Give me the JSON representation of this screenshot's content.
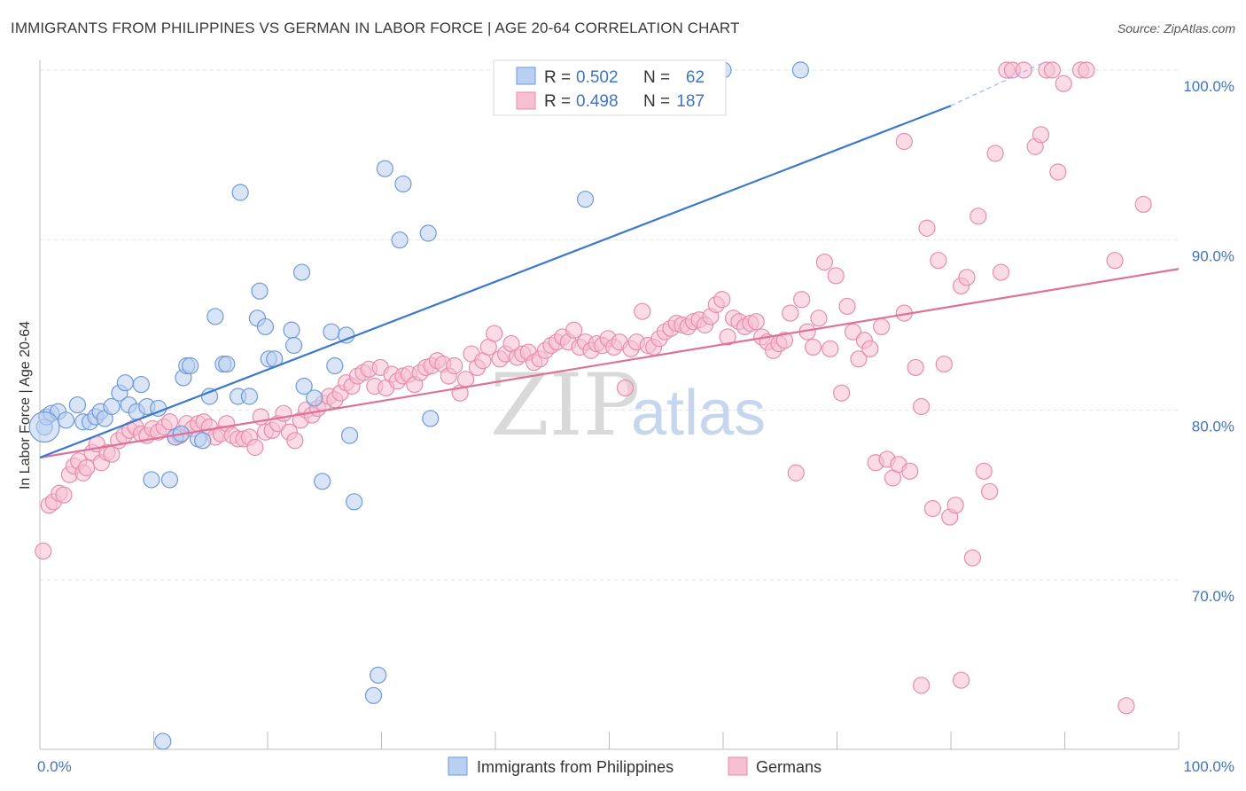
{
  "title": "IMMIGRANTS FROM PHILIPPINES VS GERMAN IN LABOR FORCE | AGE 20-64 CORRELATION CHART",
  "source": "Source: ZipAtlas.com",
  "watermark": {
    "zip": "ZIP",
    "atlas": "atlas"
  },
  "colors": {
    "blue": "#4a80d0",
    "blue_fill": "#b9d0f0",
    "pink": "#e07098",
    "pink_fill": "#f7c0d2",
    "tick_text": "#3f74c4"
  },
  "legend": {
    "rows": [
      {
        "r_label": "R =",
        "r_value": "0.502",
        "n_label": "N =",
        "n_value": "62"
      },
      {
        "r_label": "R =",
        "r_value": "0.498",
        "n_label": "N =",
        "n_value": "187"
      }
    ]
  },
  "bottom_legend": [
    "Immigrants from Philippines",
    "Germans"
  ],
  "chart_data": {
    "type": "scatter",
    "ylabel": "In Labor Force | Age 20-64",
    "xlim": [
      0,
      100
    ],
    "ylim": [
      60.5,
      101
    ],
    "x_tick_labels": [
      "0.0%",
      "100.0%"
    ],
    "y_ticks": [
      70,
      80,
      90,
      100
    ],
    "y_tick_labels": [
      "70.0%",
      "80.0%",
      "90.0%",
      "100.0%"
    ],
    "grid": true,
    "series": [
      {
        "name": "Immigrants from Philippines",
        "color": "#4a80d0",
        "trend": {
          "x": [
            0,
            80
          ],
          "y": [
            77.2,
            97.9
          ],
          "dashed_to": [
            100,
            103.0
          ]
        },
        "points": [
          [
            0.4,
            79.0
          ],
          [
            0.6,
            79.6
          ],
          [
            1.0,
            79.8
          ],
          [
            1.6,
            79.9
          ],
          [
            2.3,
            79.4
          ],
          [
            3.3,
            80.3
          ],
          [
            3.8,
            79.3
          ],
          [
            4.4,
            79.3
          ],
          [
            4.9,
            79.6
          ],
          [
            5.3,
            79.9
          ],
          [
            5.7,
            79.5
          ],
          [
            6.3,
            80.2
          ],
          [
            7.0,
            81.0
          ],
          [
            7.5,
            81.6
          ],
          [
            7.8,
            80.3
          ],
          [
            8.5,
            79.9
          ],
          [
            8.9,
            81.5
          ],
          [
            9.4,
            80.2
          ],
          [
            10.4,
            80.1
          ],
          [
            9.8,
            75.9
          ],
          [
            11.4,
            75.9
          ],
          [
            11.9,
            78.4
          ],
          [
            12.4,
            78.6
          ],
          [
            12.6,
            81.9
          ],
          [
            12.9,
            82.6
          ],
          [
            13.2,
            82.6
          ],
          [
            13.9,
            78.3
          ],
          [
            14.3,
            78.2
          ],
          [
            14.9,
            80.8
          ],
          [
            15.4,
            85.5
          ],
          [
            16.1,
            82.7
          ],
          [
            16.4,
            82.7
          ],
          [
            17.4,
            80.8
          ],
          [
            17.6,
            92.8
          ],
          [
            18.4,
            80.8
          ],
          [
            19.1,
            85.4
          ],
          [
            19.3,
            87.0
          ],
          [
            19.8,
            84.9
          ],
          [
            20.1,
            83.0
          ],
          [
            20.6,
            83.0
          ],
          [
            22.1,
            84.7
          ],
          [
            22.3,
            83.8
          ],
          [
            23.0,
            88.1
          ],
          [
            23.2,
            81.4
          ],
          [
            24.1,
            80.7
          ],
          [
            24.8,
            75.8
          ],
          [
            25.6,
            84.6
          ],
          [
            25.9,
            82.6
          ],
          [
            26.9,
            84.4
          ],
          [
            27.2,
            78.5
          ],
          [
            27.6,
            74.6
          ],
          [
            29.3,
            63.2
          ],
          [
            29.7,
            64.4
          ],
          [
            30.3,
            94.2
          ],
          [
            31.6,
            90.0
          ],
          [
            31.9,
            93.3
          ],
          [
            34.1,
            90.4
          ],
          [
            34.3,
            79.5
          ],
          [
            10.8,
            60.5
          ],
          [
            47.9,
            92.4
          ],
          [
            60.0,
            100.0
          ],
          [
            66.8,
            100.0
          ]
        ]
      },
      {
        "name": "Germans",
        "color": "#e07098",
        "trend": {
          "x": [
            0,
            100
          ],
          "y": [
            77.2,
            88.3
          ]
        },
        "points": [
          [
            0.3,
            71.7
          ],
          [
            0.8,
            74.4
          ],
          [
            1.2,
            74.6
          ],
          [
            1.7,
            75.1
          ],
          [
            2.1,
            75.0
          ],
          [
            2.6,
            76.2
          ],
          [
            3.0,
            76.7
          ],
          [
            3.4,
            77.0
          ],
          [
            3.8,
            76.3
          ],
          [
            4.1,
            76.6
          ],
          [
            4.6,
            77.5
          ],
          [
            5.0,
            78.0
          ],
          [
            5.4,
            76.9
          ],
          [
            5.9,
            77.5
          ],
          [
            6.3,
            77.4
          ],
          [
            6.9,
            78.2
          ],
          [
            7.4,
            78.5
          ],
          [
            7.9,
            78.8
          ],
          [
            8.4,
            79.0
          ],
          [
            8.9,
            78.6
          ],
          [
            9.4,
            78.5
          ],
          [
            9.9,
            78.9
          ],
          [
            10.4,
            78.7
          ],
          [
            10.9,
            79.0
          ],
          [
            11.4,
            79.3
          ],
          [
            11.9,
            78.4
          ],
          [
            12.3,
            78.5
          ],
          [
            12.9,
            79.2
          ],
          [
            13.4,
            78.9
          ],
          [
            13.9,
            79.2
          ],
          [
            14.4,
            79.3
          ],
          [
            14.9,
            79.0
          ],
          [
            15.4,
            78.4
          ],
          [
            15.9,
            78.6
          ],
          [
            16.4,
            79.2
          ],
          [
            16.9,
            78.5
          ],
          [
            17.4,
            78.3
          ],
          [
            17.9,
            78.3
          ],
          [
            18.4,
            78.4
          ],
          [
            18.9,
            77.8
          ],
          [
            19.4,
            79.6
          ],
          [
            19.8,
            78.7
          ],
          [
            20.4,
            78.8
          ],
          [
            20.9,
            79.2
          ],
          [
            21.4,
            79.8
          ],
          [
            21.9,
            78.7
          ],
          [
            22.4,
            78.2
          ],
          [
            22.9,
            79.4
          ],
          [
            23.4,
            80.0
          ],
          [
            23.9,
            79.7
          ],
          [
            24.4,
            80.1
          ],
          [
            24.9,
            80.4
          ],
          [
            25.4,
            80.8
          ],
          [
            25.9,
            80.6
          ],
          [
            26.4,
            81.0
          ],
          [
            26.9,
            81.6
          ],
          [
            27.4,
            81.4
          ],
          [
            27.9,
            82.0
          ],
          [
            28.4,
            82.2
          ],
          [
            28.9,
            82.4
          ],
          [
            29.4,
            81.4
          ],
          [
            29.9,
            82.5
          ],
          [
            30.4,
            81.3
          ],
          [
            30.9,
            82.1
          ],
          [
            31.4,
            81.7
          ],
          [
            31.9,
            82.0
          ],
          [
            32.4,
            82.1
          ],
          [
            32.9,
            81.5
          ],
          [
            33.4,
            82.2
          ],
          [
            33.9,
            82.5
          ],
          [
            34.4,
            82.6
          ],
          [
            34.9,
            82.9
          ],
          [
            35.4,
            82.7
          ],
          [
            35.9,
            82.0
          ],
          [
            36.4,
            82.6
          ],
          [
            36.9,
            81.0
          ],
          [
            37.4,
            81.8
          ],
          [
            37.9,
            83.3
          ],
          [
            38.4,
            82.5
          ],
          [
            38.9,
            82.9
          ],
          [
            39.4,
            83.7
          ],
          [
            39.9,
            84.5
          ],
          [
            40.4,
            83.0
          ],
          [
            40.9,
            83.3
          ],
          [
            41.4,
            83.9
          ],
          [
            41.9,
            83.1
          ],
          [
            42.4,
            83.3
          ],
          [
            42.9,
            83.4
          ],
          [
            43.4,
            82.8
          ],
          [
            43.9,
            83.0
          ],
          [
            44.4,
            83.5
          ],
          [
            44.9,
            83.8
          ],
          [
            45.4,
            84.0
          ],
          [
            45.9,
            84.3
          ],
          [
            46.4,
            84.0
          ],
          [
            46.9,
            84.7
          ],
          [
            47.4,
            83.7
          ],
          [
            47.9,
            84.0
          ],
          [
            48.4,
            83.5
          ],
          [
            48.9,
            83.9
          ],
          [
            49.4,
            83.8
          ],
          [
            49.9,
            84.2
          ],
          [
            50.4,
            83.7
          ],
          [
            50.9,
            84.0
          ],
          [
            51.4,
            81.3
          ],
          [
            51.9,
            83.6
          ],
          [
            52.4,
            84.0
          ],
          [
            52.9,
            85.8
          ],
          [
            53.4,
            83.8
          ],
          [
            53.9,
            83.7
          ],
          [
            54.4,
            84.2
          ],
          [
            54.9,
            84.6
          ],
          [
            55.4,
            84.8
          ],
          [
            55.9,
            85.1
          ],
          [
            56.4,
            85.0
          ],
          [
            56.9,
            84.9
          ],
          [
            57.4,
            85.2
          ],
          [
            57.9,
            85.3
          ],
          [
            58.4,
            85.0
          ],
          [
            58.9,
            85.5
          ],
          [
            59.4,
            86.2
          ],
          [
            59.9,
            86.5
          ],
          [
            60.4,
            84.3
          ],
          [
            60.9,
            85.4
          ],
          [
            61.4,
            85.2
          ],
          [
            61.9,
            84.9
          ],
          [
            62.4,
            85.1
          ],
          [
            62.9,
            85.2
          ],
          [
            63.4,
            84.3
          ],
          [
            63.9,
            84.0
          ],
          [
            64.4,
            83.5
          ],
          [
            64.9,
            83.9
          ],
          [
            65.4,
            84.1
          ],
          [
            65.9,
            85.7
          ],
          [
            66.4,
            76.3
          ],
          [
            66.9,
            86.5
          ],
          [
            67.4,
            84.6
          ],
          [
            67.9,
            83.7
          ],
          [
            68.4,
            85.4
          ],
          [
            68.9,
            88.7
          ],
          [
            69.4,
            83.6
          ],
          [
            69.9,
            87.9
          ],
          [
            70.4,
            81.0
          ],
          [
            70.9,
            86.1
          ],
          [
            71.4,
            84.6
          ],
          [
            71.9,
            83.0
          ],
          [
            72.4,
            84.1
          ],
          [
            72.9,
            83.6
          ],
          [
            73.4,
            76.9
          ],
          [
            73.9,
            84.9
          ],
          [
            74.4,
            77.1
          ],
          [
            74.9,
            76.0
          ],
          [
            75.4,
            76.8
          ],
          [
            75.9,
            85.7
          ],
          [
            76.4,
            76.4
          ],
          [
            76.9,
            82.5
          ],
          [
            77.4,
            80.2
          ],
          [
            77.9,
            90.7
          ],
          [
            78.4,
            74.2
          ],
          [
            78.9,
            88.8
          ],
          [
            79.4,
            82.7
          ],
          [
            79.9,
            73.7
          ],
          [
            80.4,
            74.4
          ],
          [
            80.9,
            87.3
          ],
          [
            81.4,
            87.8
          ],
          [
            81.9,
            71.3
          ],
          [
            82.4,
            91.4
          ],
          [
            82.9,
            76.4
          ],
          [
            83.4,
            75.2
          ],
          [
            83.9,
            95.1
          ],
          [
            84.4,
            88.1
          ],
          [
            84.9,
            100.0
          ],
          [
            85.4,
            100.0
          ],
          [
            86.4,
            100.0
          ],
          [
            87.4,
            95.5
          ],
          [
            87.9,
            96.2
          ],
          [
            88.4,
            100.0
          ],
          [
            88.9,
            100.0
          ],
          [
            89.4,
            94.0
          ],
          [
            89.9,
            99.2
          ],
          [
            91.4,
            100.0
          ],
          [
            91.9,
            100.0
          ],
          [
            94.4,
            88.8
          ],
          [
            96.9,
            92.1
          ],
          [
            75.9,
            95.8
          ],
          [
            77.4,
            63.8
          ],
          [
            80.9,
            64.1
          ],
          [
            95.4,
            62.6
          ]
        ]
      }
    ]
  }
}
